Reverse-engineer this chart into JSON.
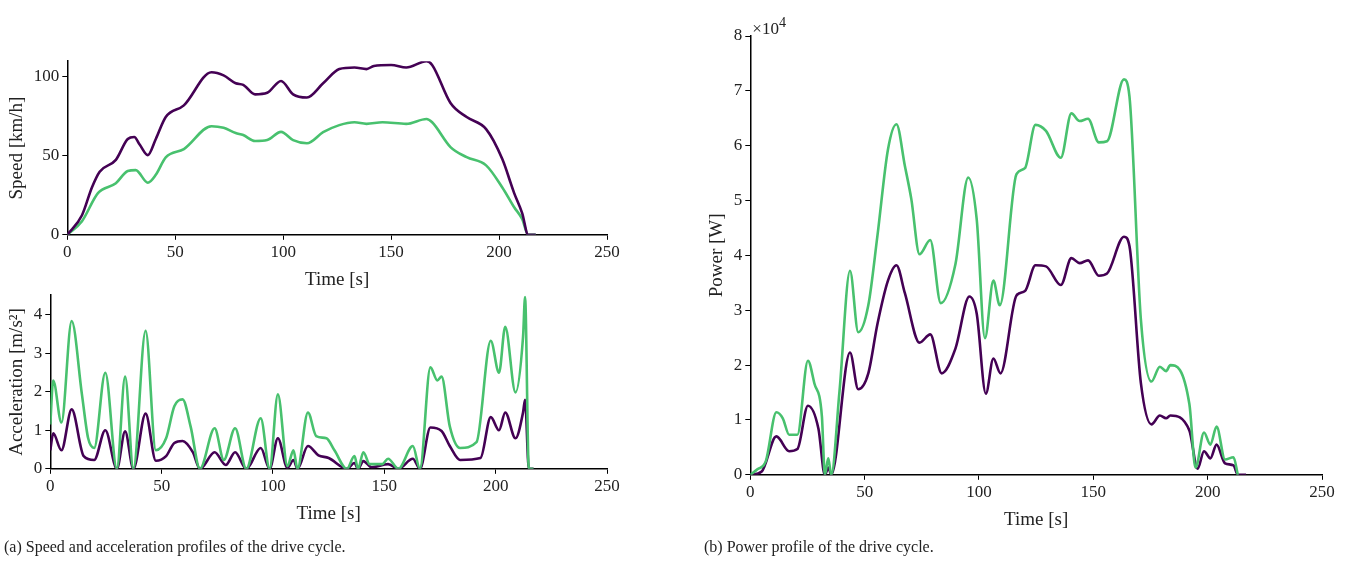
{
  "chart_data": [
    {
      "type": "line",
      "xlabel": "Time [s]",
      "ylabel": "Speed [km/h]",
      "xlim": [
        0,
        250
      ],
      "xticks": [
        0,
        50,
        100,
        150,
        200,
        250
      ],
      "ylim": [
        0,
        110
      ],
      "yticks": [
        0,
        50,
        100
      ],
      "grid": false,
      "series": [
        {
          "color": "#440154",
          "x": [
            0,
            6.8,
            11.4,
            15,
            22.5,
            28,
            31,
            33.6,
            37.3,
            41,
            45.6,
            54,
            66.8,
            72.4,
            78,
            81.5,
            87,
            92.6,
            99,
            104.6,
            111,
            118.5,
            126,
            133,
            138.6,
            142,
            150,
            157,
            166.4,
            169,
            177.5,
            185,
            194,
            201.5,
            207,
            210.7,
            213.5,
            217
          ],
          "values": [
            0,
            12.4,
            30,
            40,
            47.5,
            60.7,
            62,
            57,
            50.5,
            60.7,
            74.6,
            82,
            103,
            101,
            96,
            95,
            89,
            90,
            97.5,
            89,
            87,
            96,
            105,
            106,
            105,
            107,
            107.6,
            106,
            110,
            107.6,
            83.5,
            74.6,
            67,
            48,
            26.4,
            13.7,
            0,
            0
          ]
        },
        {
          "color": "#48c16e",
          "x": [
            0,
            6.8,
            14.2,
            22.5,
            28,
            31.7,
            37.3,
            41,
            45.6,
            54,
            66.8,
            72.4,
            78,
            81.5,
            87,
            92.6,
            99,
            104.6,
            111,
            118.5,
            126,
            133,
            138.6,
            146,
            157,
            166.4,
            169,
            177.5,
            185,
            194,
            201.5,
            207,
            210.7,
            213.5,
            217
          ],
          "values": [
            0,
            8.6,
            26.4,
            32.7,
            40.4,
            41,
            33,
            38,
            49,
            54.3,
            68.8,
            67.8,
            64.5,
            63.2,
            59.4,
            60,
            65.2,
            60,
            58,
            65,
            69.5,
            71.3,
            70.3,
            71.3,
            70.3,
            73.4,
            71.3,
            55.6,
            49.2,
            44,
            30,
            17.5,
            10,
            0,
            0
          ]
        }
      ]
    },
    {
      "type": "line",
      "xlabel": "Time [s]",
      "ylabel": "Acceleration [m/s²]",
      "xlim": [
        0,
        250
      ],
      "xticks": [
        0,
        50,
        100,
        150,
        200,
        250
      ],
      "ylim": [
        0,
        4.5
      ],
      "yticks": [
        0,
        1,
        2,
        3,
        4
      ],
      "grid": false,
      "annotations": [
        "(a) Speed and acceleration profiles of the drive cycle."
      ],
      "series": [
        {
          "color": "#48c16e",
          "x": [
            0,
            1.3,
            5,
            9.6,
            14.2,
            17,
            19.7,
            24.7,
            29.9,
            33.6,
            37.3,
            42.8,
            47.4,
            52,
            55.7,
            59.4,
            63,
            67.2,
            73.8,
            77.9,
            83,
            88,
            94.5,
            98.5,
            102.2,
            106.5,
            109.2,
            111,
            115.7,
            119.4,
            124,
            127.6,
            133.2,
            136.6,
            138.2,
            140.6,
            143.4,
            149,
            151.7,
            156.3,
            162.8,
            166,
            170.7,
            173.8,
            175.7,
            179.4,
            184,
            191.4,
            197.8,
            201.5,
            204.3,
            208.9,
            212.3,
            213.2,
            214.9,
            217
          ],
          "values": [
            1.15,
            2.29,
            1.2,
            3.83,
            1.93,
            0.79,
            0.54,
            2.49,
            0,
            2.39,
            0,
            3.58,
            0.48,
            0.79,
            1.62,
            1.8,
            1.1,
            0,
            1.05,
            0.23,
            1.05,
            0,
            1.31,
            0,
            1.93,
            0.07,
            0.48,
            0,
            1.46,
            0.85,
            0.79,
            0.48,
            0,
            0.33,
            0,
            0.43,
            0.12,
            0.12,
            0.26,
            0,
            0.59,
            0,
            2.63,
            2.29,
            2.39,
            1.1,
            0.54,
            0.69,
            3.32,
            2.49,
            3.68,
            1.98,
            3.42,
            4.45,
            0,
            0
          ]
        },
        {
          "color": "#440154",
          "x": [
            0,
            1.3,
            5,
            9.6,
            15,
            19.7,
            24.7,
            29.9,
            33.6,
            37.3,
            42.8,
            47.4,
            52,
            55.7,
            59.4,
            64,
            67.2,
            73.8,
            78.8,
            83,
            88,
            94.5,
            98.5,
            102.2,
            106.5,
            109.2,
            111,
            115.7,
            120.4,
            125,
            133.2,
            136.6,
            138.2,
            140.6,
            144.3,
            151.7,
            156.3,
            162.8,
            166,
            170.7,
            175.7,
            179.4,
            184,
            193.2,
            197.8,
            201.5,
            204.3,
            208.9,
            212.3,
            213.2,
            214.9,
            217
          ],
          "values": [
            0.48,
            0.92,
            0.48,
            1.54,
            0.33,
            0.23,
            1.0,
            0,
            0.97,
            0,
            1.43,
            0.21,
            0.33,
            0.67,
            0.72,
            0.43,
            0,
            0.43,
            0.1,
            0.43,
            0,
            0.54,
            0,
            0.79,
            0.02,
            0.23,
            0,
            0.59,
            0.35,
            0.28,
            0,
            0.15,
            0,
            0.2,
            0.04,
            0.12,
            0,
            0.26,
            0,
            1.07,
            0.98,
            0.59,
            0.23,
            0.28,
            1.34,
            1.0,
            1.46,
            0.79,
            1.46,
            1.79,
            0,
            0
          ]
        }
      ]
    },
    {
      "type": "line",
      "xlabel": "Time [s]",
      "ylabel": "Power [W]",
      "xlim": [
        0,
        250
      ],
      "xticks": [
        0,
        50,
        100,
        150,
        200,
        250
      ],
      "ylim": [
        0,
        8
      ],
      "grid": false,
      "yticks": [
        0,
        1,
        2,
        3,
        4,
        5,
        6,
        7,
        8
      ],
      "annotations": [
        "×10$^{4}$",
        "(b) Power profile of the drive cycle."
      ],
      "series": [
        {
          "color": "#48c16e",
          "x": [
            0,
            3.1,
            6.8,
            11.4,
            14.2,
            17,
            20.6,
            25.2,
            28,
            31.3,
            32.6,
            34.1,
            35.4,
            39,
            43.6,
            47.2,
            51.6,
            55.6,
            60.2,
            63.9,
            67.6,
            70.4,
            74,
            78.7,
            83.3,
            89.7,
            95.3,
            99,
            102.6,
            106.3,
            109.1,
            116.4,
            120.1,
            124.7,
            129.3,
            135.8,
            140.4,
            144,
            147.7,
            152.4,
            156,
            163.4,
            165.8,
            170.8,
            175.4,
            179.1,
            181.8,
            183.7,
            192,
            194.7,
            198.4,
            201.2,
            203.9,
            207.6,
            211.3,
            213.2
          ],
          "values": [
            0,
            0.1,
            0.25,
            1.14,
            1.03,
            0.73,
            0.73,
            2.08,
            1.67,
            1.07,
            0,
            0.3,
            0,
            1.52,
            3.72,
            2.6,
            3.09,
            4.36,
            5.93,
            6.39,
            5.63,
            5.03,
            4.02,
            4.28,
            3.13,
            3.84,
            5.42,
            4.66,
            2.49,
            3.54,
            3.09,
            5.48,
            5.59,
            6.38,
            6.27,
            5.78,
            6.59,
            6.45,
            6.49,
            6.06,
            6.08,
            7.21,
            6.9,
            2.83,
            1.7,
            1.97,
            1.89,
            2.0,
            1.29,
            0.13,
            0.77,
            0.55,
            0.88,
            0.28,
            0.32,
            0
          ]
        },
        {
          "color": "#440154",
          "x": [
            0,
            5,
            11.4,
            17,
            20.6,
            25.2,
            29.8,
            32.6,
            34.1,
            35.4,
            43.6,
            47.2,
            51.6,
            55.6,
            60.2,
            63.9,
            67.6,
            74,
            78.7,
            83.7,
            89.7,
            95.8,
            99,
            103,
            106.3,
            109.4,
            116.4,
            120.1,
            124.7,
            129.3,
            135.8,
            140.4,
            144,
            147.7,
            152.4,
            156,
            163.4,
            165.8,
            170.8,
            175.4,
            179.1,
            181.8,
            183.7,
            192,
            195.6,
            198.4,
            201.2,
            203.9,
            207.6,
            211.3,
            213.2,
            216.8
          ],
          "values": [
            0,
            0.06,
            0.7,
            0.43,
            0.47,
            1.26,
            0.84,
            0,
            0.13,
            0,
            2.23,
            1.56,
            1.85,
            2.75,
            3.54,
            3.82,
            3.31,
            2.41,
            2.56,
            1.85,
            2.3,
            3.25,
            2.94,
            1.48,
            2.12,
            1.85,
            3.27,
            3.35,
            3.82,
            3.8,
            3.46,
            3.95,
            3.86,
            3.91,
            3.63,
            3.67,
            4.34,
            4.17,
            1.67,
            0.92,
            1.08,
            1.03,
            1.08,
            0.81,
            0.11,
            0.43,
            0.3,
            0.55,
            0.21,
            0.17,
            0,
            0
          ]
        }
      ]
    }
  ]
}
